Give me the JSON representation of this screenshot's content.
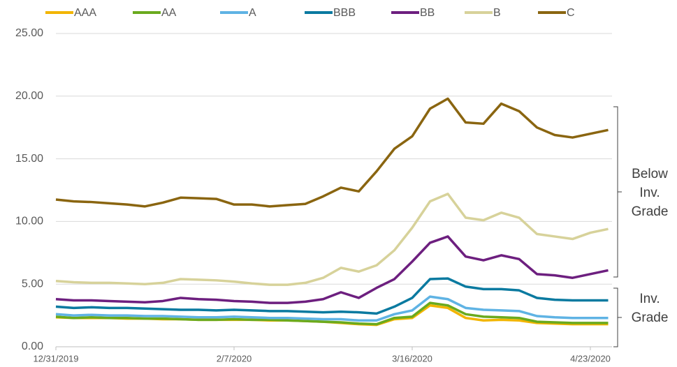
{
  "chart_data": {
    "type": "line",
    "categories": [
      "12/31/2019",
      null,
      null,
      null,
      null,
      null,
      null,
      null,
      null,
      null,
      "2/7/2020",
      null,
      null,
      null,
      null,
      null,
      null,
      null,
      null,
      null,
      "3/16/2020",
      null,
      null,
      null,
      null,
      null,
      null,
      null,
      null,
      null,
      "4/23/2020",
      null
    ],
    "series": [
      {
        "name": "AAA",
        "color": "#f2b500",
        "values": [
          2.35,
          2.3,
          2.3,
          2.3,
          2.25,
          2.25,
          2.2,
          2.2,
          2.15,
          2.15,
          2.15,
          2.15,
          2.1,
          2.1,
          2.05,
          2.0,
          1.9,
          1.8,
          1.75,
          2.2,
          2.3,
          3.3,
          3.1,
          2.3,
          2.1,
          2.15,
          2.1,
          1.9,
          1.85,
          1.8,
          1.8,
          1.8
        ]
      },
      {
        "name": "AA",
        "color": "#6aaa1e",
        "values": [
          2.4,
          2.3,
          2.35,
          2.3,
          2.3,
          2.25,
          2.25,
          2.2,
          2.15,
          2.15,
          2.2,
          2.15,
          2.15,
          2.1,
          2.05,
          2.0,
          1.95,
          1.85,
          1.8,
          2.3,
          2.4,
          3.5,
          3.3,
          2.6,
          2.4,
          2.35,
          2.3,
          2.0,
          1.95,
          1.9,
          1.9,
          1.9
        ]
      },
      {
        "name": "A",
        "color": "#5fb3e4",
        "values": [
          2.6,
          2.5,
          2.55,
          2.5,
          2.5,
          2.45,
          2.45,
          2.4,
          2.35,
          2.35,
          2.4,
          2.35,
          2.3,
          2.3,
          2.25,
          2.2,
          2.2,
          2.1,
          2.1,
          2.6,
          2.9,
          4.0,
          3.8,
          3.1,
          2.95,
          2.9,
          2.85,
          2.45,
          2.35,
          2.3,
          2.3,
          2.3
        ]
      },
      {
        "name": "BBB",
        "color": "#0a7aa0",
        "values": [
          3.2,
          3.1,
          3.15,
          3.1,
          3.1,
          3.05,
          3.0,
          2.95,
          2.95,
          2.9,
          2.95,
          2.9,
          2.85,
          2.85,
          2.8,
          2.75,
          2.8,
          2.75,
          2.65,
          3.2,
          3.9,
          5.4,
          5.45,
          4.8,
          4.6,
          4.6,
          4.5,
          3.9,
          3.75,
          3.7,
          3.7,
          3.7
        ]
      },
      {
        "name": "BB",
        "color": "#6d1f7f",
        "values": [
          3.8,
          3.7,
          3.7,
          3.65,
          3.6,
          3.55,
          3.65,
          3.9,
          3.8,
          3.75,
          3.65,
          3.6,
          3.5,
          3.5,
          3.6,
          3.8,
          4.35,
          3.9,
          4.7,
          5.4,
          6.8,
          8.3,
          8.8,
          7.2,
          6.9,
          7.3,
          7.0,
          5.8,
          5.7,
          5.5,
          5.8,
          6.1
        ]
      },
      {
        "name": "B",
        "color": "#d7d29a",
        "values": [
          5.25,
          5.15,
          5.1,
          5.1,
          5.05,
          5.0,
          5.1,
          5.4,
          5.35,
          5.3,
          5.2,
          5.05,
          4.95,
          4.95,
          5.1,
          5.5,
          6.3,
          6.0,
          6.5,
          7.7,
          9.5,
          11.6,
          12.2,
          10.3,
          10.1,
          10.7,
          10.3,
          9.0,
          8.8,
          8.6,
          9.1,
          9.4
        ]
      },
      {
        "name": "C",
        "color": "#8a6510",
        "values": [
          11.75,
          11.6,
          11.55,
          11.45,
          11.35,
          11.2,
          11.5,
          11.9,
          11.85,
          11.8,
          11.35,
          11.35,
          11.2,
          11.3,
          11.4,
          12.0,
          12.7,
          12.4,
          14.0,
          15.8,
          16.8,
          19.0,
          19.8,
          17.9,
          17.8,
          19.4,
          18.8,
          17.5,
          16.9,
          16.7,
          17.0,
          17.3
        ]
      }
    ],
    "ylim": [
      0,
      25
    ],
    "yticks": [
      {
        "value": 0,
        "label": "0.00"
      },
      {
        "value": 5,
        "label": "5.00"
      },
      {
        "value": 10,
        "label": "10.00"
      },
      {
        "value": 15,
        "label": "15.00"
      },
      {
        "value": 20,
        "label": "20.00"
      },
      {
        "value": 25,
        "label": "25.00"
      }
    ],
    "grid": true,
    "annotations": [
      {
        "text": [
          "Below",
          "Inv.",
          "Grade"
        ]
      },
      {
        "text": [
          "Inv.",
          "Grade"
        ]
      }
    ]
  }
}
